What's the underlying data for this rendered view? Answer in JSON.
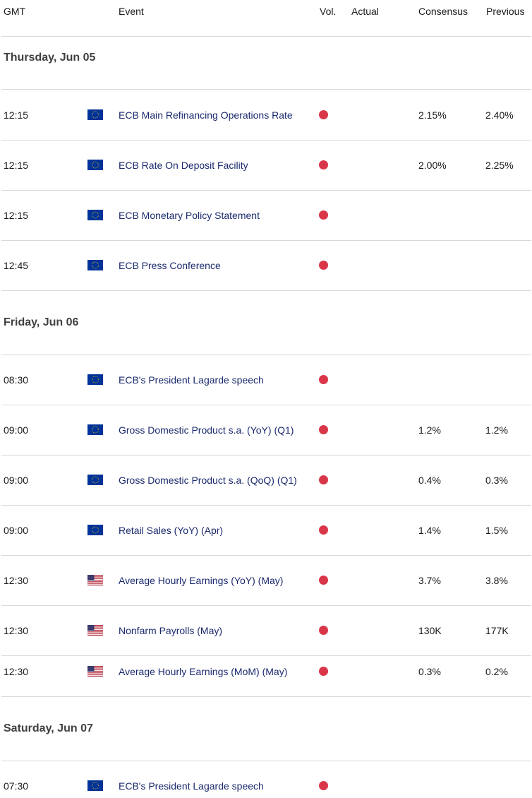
{
  "header": {
    "gmt": "GMT",
    "event": "Event",
    "vol": "Vol.",
    "actual": "Actual",
    "consensus": "Consensus",
    "previous": "Previous"
  },
  "colors": {
    "volatility_dot": "#d9364a",
    "event_text": "#1b2a6e",
    "eu_flag_blue": "#003399",
    "eu_flag_star": "#ffcc00",
    "us_flag_red": "#b22234",
    "us_flag_blue": "#3c3b6e"
  },
  "days": [
    {
      "label": "Thursday, Jun 05",
      "events": [
        {
          "time": "12:15",
          "flag": "eu-flag-icon",
          "name": "ECB Main Refinancing Operations Rate",
          "actual": "",
          "consensus": "2.15%",
          "previous": "2.40%"
        },
        {
          "time": "12:15",
          "flag": "eu-flag-icon",
          "name": "ECB Rate On Deposit Facility",
          "actual": "",
          "consensus": "2.00%",
          "previous": "2.25%"
        },
        {
          "time": "12:15",
          "flag": "eu-flag-icon",
          "name": "ECB Monetary Policy Statement",
          "actual": "",
          "consensus": "",
          "previous": ""
        },
        {
          "time": "12:45",
          "flag": "eu-flag-icon",
          "name": "ECB Press Conference",
          "actual": "",
          "consensus": "",
          "previous": ""
        }
      ]
    },
    {
      "label": "Friday, Jun 06",
      "events": [
        {
          "time": "08:30",
          "flag": "eu-flag-icon",
          "name": "ECB's President Lagarde speech",
          "actual": "",
          "consensus": "",
          "previous": ""
        },
        {
          "time": "09:00",
          "flag": "eu-flag-icon",
          "name": "Gross Domestic Product s.a. (YoY) (Q1)",
          "actual": "",
          "consensus": "1.2%",
          "previous": "1.2%"
        },
        {
          "time": "09:00",
          "flag": "eu-flag-icon",
          "name": "Gross Domestic Product s.a. (QoQ) (Q1)",
          "actual": "",
          "consensus": "0.4%",
          "previous": "0.3%"
        },
        {
          "time": "09:00",
          "flag": "eu-flag-icon",
          "name": "Retail Sales (YoY) (Apr)",
          "actual": "",
          "consensus": "1.4%",
          "previous": "1.5%"
        },
        {
          "time": "12:30",
          "flag": "us-flag-icon",
          "name": "Average Hourly Earnings (YoY) (May)",
          "actual": "",
          "consensus": "3.7%",
          "previous": "3.8%"
        },
        {
          "time": "12:30",
          "flag": "us-flag-icon",
          "name": "Nonfarm Payrolls (May)",
          "actual": "",
          "consensus": "130K",
          "previous": "177K"
        },
        {
          "time": "12:30",
          "flag": "us-flag-icon",
          "name": "Average Hourly Earnings (MoM) (May)",
          "actual": "",
          "consensus": "0.3%",
          "previous": "0.2%"
        }
      ]
    },
    {
      "label": "Saturday, Jun 07",
      "events": [
        {
          "time": "07:30",
          "flag": "eu-flag-icon",
          "name": "ECB's President Lagarde speech",
          "actual": "",
          "consensus": "",
          "previous": ""
        }
      ]
    }
  ]
}
